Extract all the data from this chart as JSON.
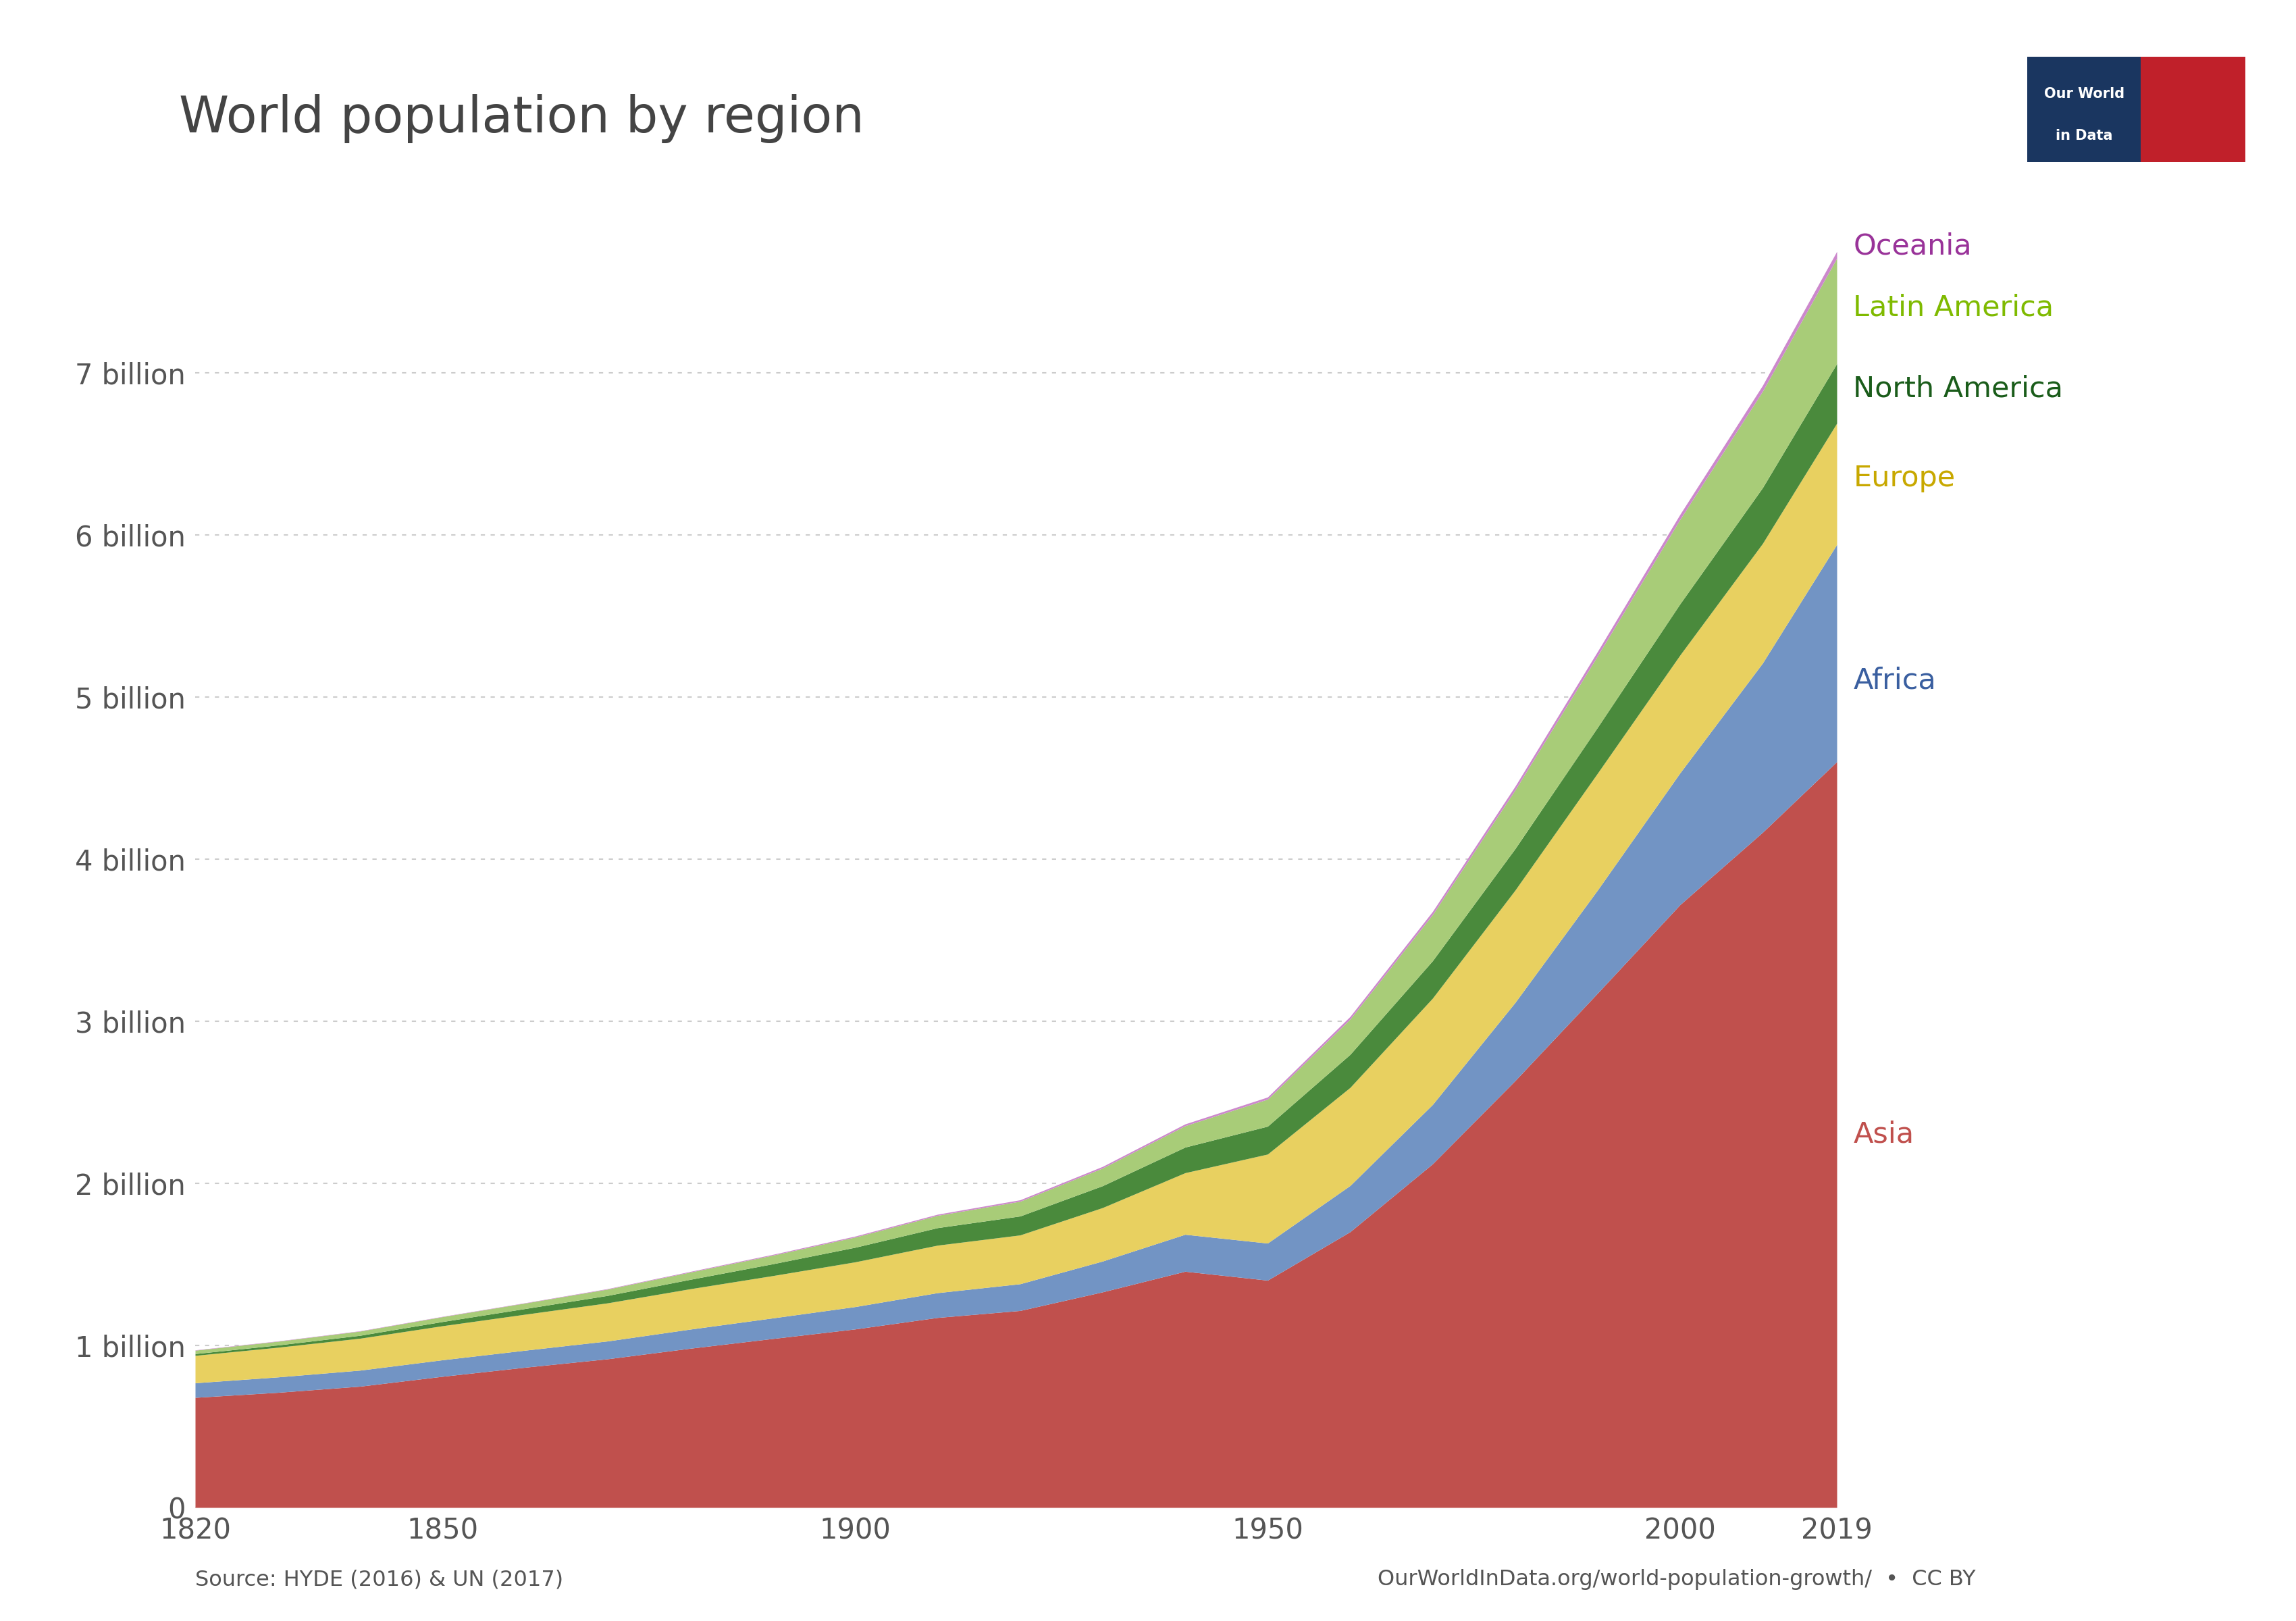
{
  "title": "World population by region",
  "years": [
    1820,
    1830,
    1840,
    1850,
    1860,
    1870,
    1880,
    1890,
    1900,
    1910,
    1920,
    1930,
    1940,
    1950,
    1960,
    1970,
    1980,
    1990,
    2000,
    2010,
    2019
  ],
  "regions": [
    "Asia",
    "Africa",
    "Europe",
    "North America",
    "Latin America",
    "Oceania"
  ],
  "colors": [
    "#c0504d",
    "#7294c4",
    "#e8d060",
    "#4a8a3c",
    "#a8cc78",
    "#cc88cc"
  ],
  "data": {
    "Asia": [
      679,
      710,
      748,
      809,
      865,
      917,
      982,
      1042,
      1101,
      1172,
      1215,
      1330,
      1457,
      1402,
      1701,
      2120,
      2633,
      3173,
      3719,
      4165,
      4601
    ],
    "Africa": [
      90,
      95,
      99,
      102,
      105,
      110,
      118,
      127,
      138,
      153,
      165,
      190,
      228,
      229,
      285,
      366,
      482,
      636,
      813,
      1044,
      1340
    ],
    "Europe": [
      169,
      183,
      197,
      210,
      222,
      235,
      249,
      261,
      276,
      293,
      301,
      330,
      380,
      549,
      605,
      656,
      693,
      721,
      727,
      738,
      748
    ],
    "North America": [
      11,
      14,
      18,
      26,
      35,
      46,
      58,
      73,
      90,
      108,
      117,
      135,
      158,
      172,
      204,
      231,
      256,
      283,
      316,
      344,
      368
    ],
    "Latin America": [
      21,
      23,
      26,
      30,
      34,
      39,
      45,
      53,
      63,
      76,
      91,
      109,
      132,
      167,
      218,
      285,
      362,
      441,
      521,
      595,
      650
    ],
    "Oceania": [
      2,
      2,
      2,
      2,
      2,
      3,
      4,
      5,
      6,
      7,
      9,
      10,
      11,
      13,
      16,
      19,
      23,
      27,
      31,
      36,
      42
    ]
  },
  "scale": 1000000,
  "xlim": [
    1820,
    2019
  ],
  "ylim": [
    0,
    8000
  ],
  "yticks": [
    0,
    1000,
    2000,
    3000,
    4000,
    5000,
    6000,
    7000
  ],
  "ytick_labels": [
    "0",
    "1 billion",
    "2 billion",
    "3 billion",
    "4 billion",
    "5 billion",
    "6 billion",
    "7 billion"
  ],
  "xticks": [
    1820,
    1850,
    1900,
    1950,
    2000,
    2019
  ],
  "source_text": "Source: HYDE (2016) & UN (2017)",
  "url_text": "OurWorldInData.org/world-population-growth/  •  CC BY",
  "background_color": "#ffffff",
  "grid_color": "#cccccc",
  "text_color": "#555555",
  "label_annotations": [
    {
      "text": "Oceania",
      "color": "#993399",
      "y": 7780
    },
    {
      "text": "Latin America",
      "color": "#7fba00",
      "y": 7400
    },
    {
      "text": "North America",
      "color": "#1a5c1a",
      "y": 6900
    },
    {
      "text": "Europe",
      "color": "#c8a800",
      "y": 6350
    },
    {
      "text": "Africa",
      "color": "#3a5fa0",
      "y": 5100
    },
    {
      "text": "Asia",
      "color": "#c0504d",
      "y": 2300
    }
  ],
  "logo_navy": "#1a3660",
  "logo_red": "#c0202a"
}
